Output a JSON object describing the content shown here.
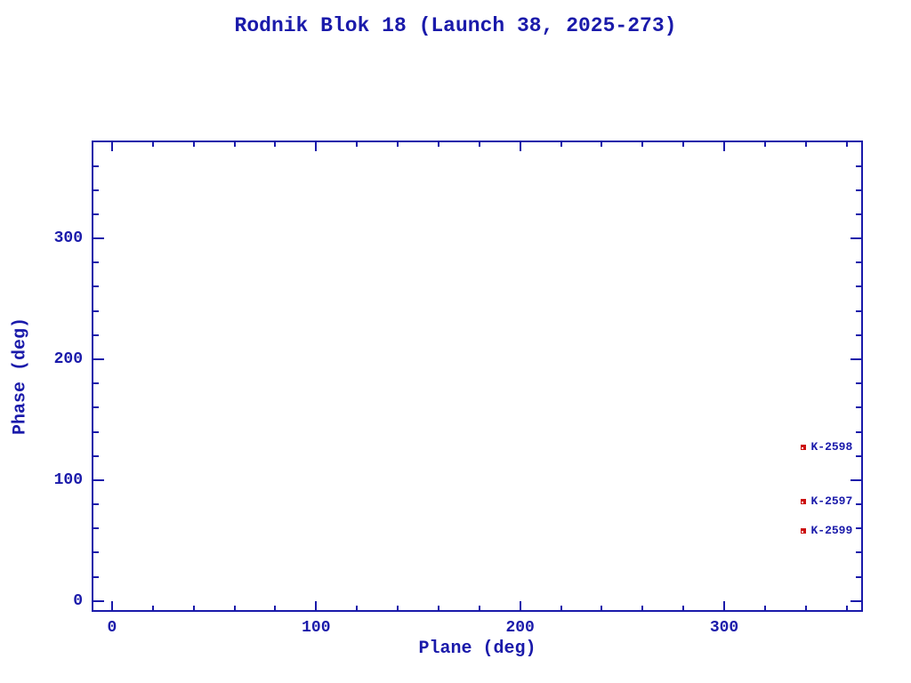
{
  "page": {
    "background": "#ffffff"
  },
  "chart_data": {
    "type": "scatter",
    "title": "Rodnik Blok 18 (Launch 38, 2025-273)",
    "xlabel": "Plane (deg)",
    "ylabel": "Phase (deg)",
    "xlim": [
      -10,
      368
    ],
    "ylim": [
      -9,
      381
    ],
    "x_major_ticks": [
      0,
      100,
      200,
      300
    ],
    "y_major_ticks": [
      0,
      100,
      200,
      300
    ],
    "minor_tick_interval": 20,
    "minor_tick_max_x": 360,
    "minor_tick_max_y": 380,
    "grid": false,
    "legend": "none",
    "series": [
      {
        "name": "satellites",
        "marker": "filled-square",
        "points": [
          {
            "label": "K-2598",
            "plane_deg": 339,
            "phase_deg": 127
          },
          {
            "label": "K-2597",
            "plane_deg": 339,
            "phase_deg": 82
          },
          {
            "label": "K-2599",
            "plane_deg": 339,
            "phase_deg": 58
          }
        ]
      }
    ],
    "colors": {
      "axis_and_text": "#1a1aaa",
      "marker": "#cc1111",
      "background": "#ffffff"
    }
  }
}
